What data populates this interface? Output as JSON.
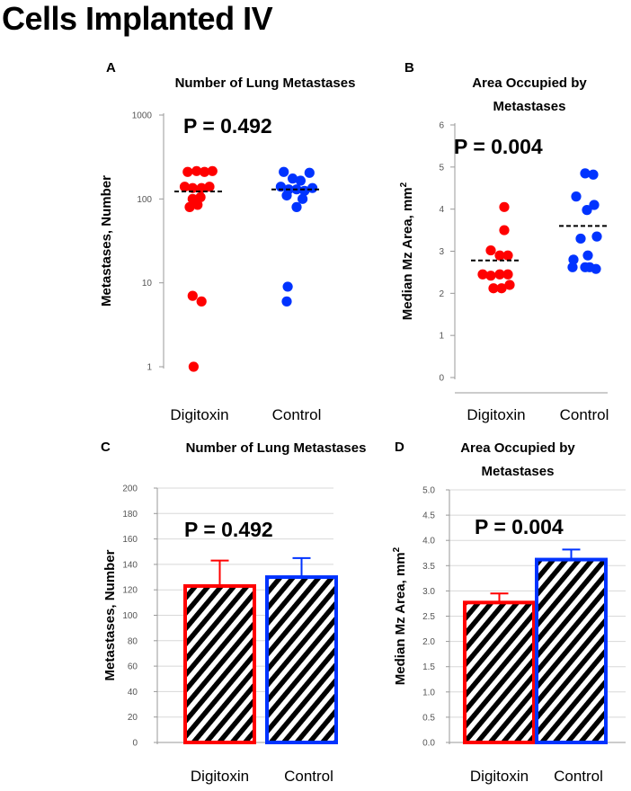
{
  "page_title": "Cells Implanted IV",
  "colors": {
    "digitoxin": "#ff0000",
    "control": "#0033ff",
    "axis": "#999999",
    "grid": "#d8d8d8"
  },
  "chart_data": [
    {
      "id": "A",
      "panel_label": "A",
      "type": "scatter",
      "title": "Number of Lung Metastases",
      "ylabel": "Metastases, Number",
      "yscale": "log",
      "ylim": [
        1,
        1000
      ],
      "yticks": [
        "1",
        "10",
        "100",
        "1000"
      ],
      "categories": [
        "Digitoxin",
        "Control"
      ],
      "pvalue": "P = 0.492",
      "series": [
        {
          "name": "Digitoxin",
          "color": "#ff0000",
          "median": 123,
          "points": [
            {
              "dx": -1.2,
              "y": 210
            },
            {
              "dx": -0.3,
              "y": 215
            },
            {
              "dx": 0.5,
              "y": 210
            },
            {
              "dx": 1.3,
              "y": 215
            },
            {
              "dx": -1.5,
              "y": 140
            },
            {
              "dx": -0.7,
              "y": 135
            },
            {
              "dx": 0.2,
              "y": 135
            },
            {
              "dx": 1.0,
              "y": 140
            },
            {
              "dx": -0.7,
              "y": 100
            },
            {
              "dx": 0.1,
              "y": 105
            },
            {
              "dx": -1.0,
              "y": 80
            },
            {
              "dx": -0.2,
              "y": 85
            },
            {
              "dx": -0.7,
              "y": 7
            },
            {
              "dx": 0.2,
              "y": 6
            },
            {
              "dx": -0.6,
              "y": 1
            }
          ]
        },
        {
          "name": "Control",
          "color": "#0033ff",
          "median": 130,
          "points": [
            {
              "dx": -1.3,
              "y": 210
            },
            {
              "dx": -0.4,
              "y": 175
            },
            {
              "dx": 0.4,
              "y": 165
            },
            {
              "dx": 1.3,
              "y": 205
            },
            {
              "dx": -1.6,
              "y": 140
            },
            {
              "dx": -0.8,
              "y": 130
            },
            {
              "dx": 0.0,
              "y": 130
            },
            {
              "dx": 0.8,
              "y": 125
            },
            {
              "dx": 1.6,
              "y": 135
            },
            {
              "dx": -1.0,
              "y": 110
            },
            {
              "dx": 0.6,
              "y": 100
            },
            {
              "dx": 0.0,
              "y": 80
            },
            {
              "dx": -0.9,
              "y": 9
            },
            {
              "dx": -1.0,
              "y": 6
            }
          ]
        }
      ]
    },
    {
      "id": "B",
      "panel_label": "B",
      "type": "scatter",
      "title_lines": [
        "Area Occupied by",
        "Metastases"
      ],
      "ylabel": "Median Mz Area, mm",
      "ylabel_sup": "2",
      "ylim": [
        0,
        6
      ],
      "yticks": [
        "0",
        "1",
        "2",
        "3",
        "4",
        "5",
        "6"
      ],
      "categories": [
        "Digitoxin",
        "Control"
      ],
      "pvalue": "P = 0.004",
      "series": [
        {
          "name": "Digitoxin",
          "color": "#ff0000",
          "median": 2.78,
          "points": [
            {
              "dx": 0.9,
              "y": 4.05
            },
            {
              "dx": 0.9,
              "y": 3.5
            },
            {
              "dx": -0.6,
              "y": 3.02
            },
            {
              "dx": 0.4,
              "y": 2.9
            },
            {
              "dx": 1.3,
              "y": 2.9
            },
            {
              "dx": -1.5,
              "y": 2.45
            },
            {
              "dx": -0.6,
              "y": 2.42
            },
            {
              "dx": 0.4,
              "y": 2.45
            },
            {
              "dx": 1.3,
              "y": 2.45
            },
            {
              "dx": -0.3,
              "y": 2.12
            },
            {
              "dx": 0.6,
              "y": 2.12
            },
            {
              "dx": 1.5,
              "y": 2.2
            }
          ]
        },
        {
          "name": "Control",
          "color": "#0033ff",
          "median": 3.6,
          "points": [
            {
              "dx": 0.1,
              "y": 4.85
            },
            {
              "dx": 1.0,
              "y": 4.82
            },
            {
              "dx": -0.9,
              "y": 4.3
            },
            {
              "dx": 1.1,
              "y": 4.1
            },
            {
              "dx": 0.3,
              "y": 3.98
            },
            {
              "dx": -0.4,
              "y": 3.3
            },
            {
              "dx": 1.4,
              "y": 3.35
            },
            {
              "dx": -1.2,
              "y": 2.8
            },
            {
              "dx": 0.4,
              "y": 2.9
            },
            {
              "dx": 0.1,
              "y": 2.62
            },
            {
              "dx": -1.3,
              "y": 2.62
            },
            {
              "dx": 1.3,
              "y": 2.58
            },
            {
              "dx": 0.6,
              "y": 2.62
            }
          ]
        }
      ]
    },
    {
      "id": "C",
      "panel_label": "C",
      "type": "bar",
      "title": "Number of Lung Metastases",
      "ylabel": "Metastases, Number",
      "ylim": [
        0,
        200
      ],
      "yticks": [
        "0",
        "20",
        "40",
        "60",
        "80",
        "100",
        "120",
        "140",
        "160",
        "180",
        "200"
      ],
      "categories": [
        "Digitoxin",
        "Control"
      ],
      "values": [
        123,
        130
      ],
      "errors": [
        20,
        15
      ],
      "pvalue": "P = 0.492"
    },
    {
      "id": "D",
      "panel_label": "D",
      "type": "bar",
      "title_lines": [
        "Area Occupied by",
        "Metastases"
      ],
      "ylabel": "Median Mz Area, mm",
      "ylabel_sup": "2",
      "ylim": [
        0,
        5
      ],
      "yticks": [
        "0.0",
        "0.5",
        "1.0",
        "1.5",
        "2.0",
        "2.5",
        "3.0",
        "3.5",
        "4.0",
        "4.5",
        "5.0"
      ],
      "categories": [
        "Digitoxin",
        "Control"
      ],
      "values": [
        2.77,
        3.62
      ],
      "errors": [
        0.18,
        0.2
      ],
      "pvalue": "P = 0.004"
    }
  ]
}
